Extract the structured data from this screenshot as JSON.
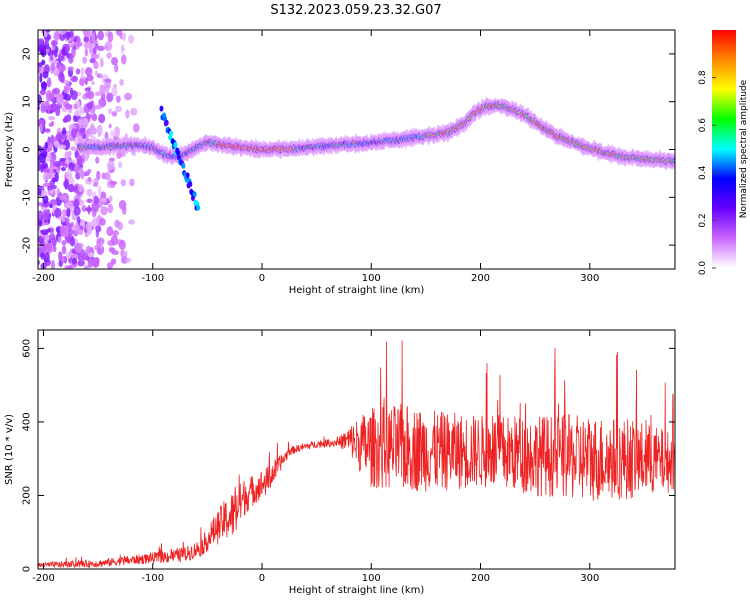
{
  "chart_data": [
    {
      "type": "heatmap",
      "title": "S132.2023.059.23.32.G07",
      "xlabel": "Height of straight line (km)",
      "ylabel": "Frequency (Hz)",
      "xlim": [
        -205,
        378
      ],
      "ylim": [
        -25,
        25
      ],
      "xticks": [
        -200,
        -100,
        0,
        100,
        200,
        300
      ],
      "yticks": [
        -20,
        -10,
        0,
        10,
        20
      ],
      "colorbar": {
        "label": "Normalized spectral amplitude",
        "range": [
          0.0,
          1.0
        ],
        "ticks": [
          0.0,
          0.2,
          0.4,
          0.6,
          0.8
        ],
        "colors": [
          "#ffffff",
          "#cc66ff",
          "#6600ff",
          "#0000ff",
          "#00ffff",
          "#00ff00",
          "#ffff00",
          "#ff8800",
          "#ff0000"
        ]
      },
      "ridge": {
        "x": [
          -165,
          -150,
          -130,
          -115,
          -100,
          -90,
          -80,
          -70,
          -60,
          -50,
          -30,
          0,
          30,
          60,
          90,
          120,
          150,
          170,
          185,
          195,
          205,
          215,
          225,
          235,
          245,
          255,
          270,
          290,
          310,
          330,
          350,
          378
        ],
        "y": [
          0.5,
          0.5,
          0.8,
          0.8,
          0.5,
          -1.0,
          -1.5,
          -1.0,
          0.5,
          1.5,
          0.8,
          0.0,
          0.2,
          0.8,
          1.3,
          1.9,
          2.8,
          3.5,
          5.5,
          7.8,
          9.0,
          9.3,
          8.8,
          7.8,
          6.5,
          5.0,
          2.8,
          1.0,
          -0.5,
          -1.5,
          -2.0,
          -2.5
        ]
      },
      "noise_region": {
        "x_start": -205,
        "x_end": -110
      }
    },
    {
      "type": "line",
      "xlabel": "Height of straight line (km)",
      "ylabel": "SNR (10 * v/v)",
      "xlim": [
        -205,
        378
      ],
      "ylim": [
        0,
        650
      ],
      "xticks": [
        -200,
        -100,
        0,
        100,
        200,
        300
      ],
      "yticks": [
        0,
        200,
        400,
        600
      ],
      "color": "#ee2222",
      "envelope": {
        "x": [
          -205,
          -150,
          -100,
          -70,
          -55,
          -45,
          -35,
          -25,
          -15,
          -5,
          5,
          15,
          25,
          35,
          50,
          70,
          80,
          90,
          100,
          130,
          160,
          200,
          250,
          300,
          340,
          378
        ],
        "mean": [
          10,
          15,
          30,
          40,
          60,
          100,
          130,
          150,
          200,
          220,
          240,
          280,
          320,
          330,
          340,
          345,
          350,
          340,
          330,
          330,
          320,
          320,
          310,
          300,
          300,
          290
        ],
        "spread": [
          8,
          10,
          15,
          20,
          25,
          40,
          55,
          70,
          50,
          40,
          40,
          25,
          12,
          10,
          10,
          12,
          40,
          80,
          110,
          120,
          110,
          100,
          110,
          120,
          110,
          80
        ]
      }
    }
  ]
}
